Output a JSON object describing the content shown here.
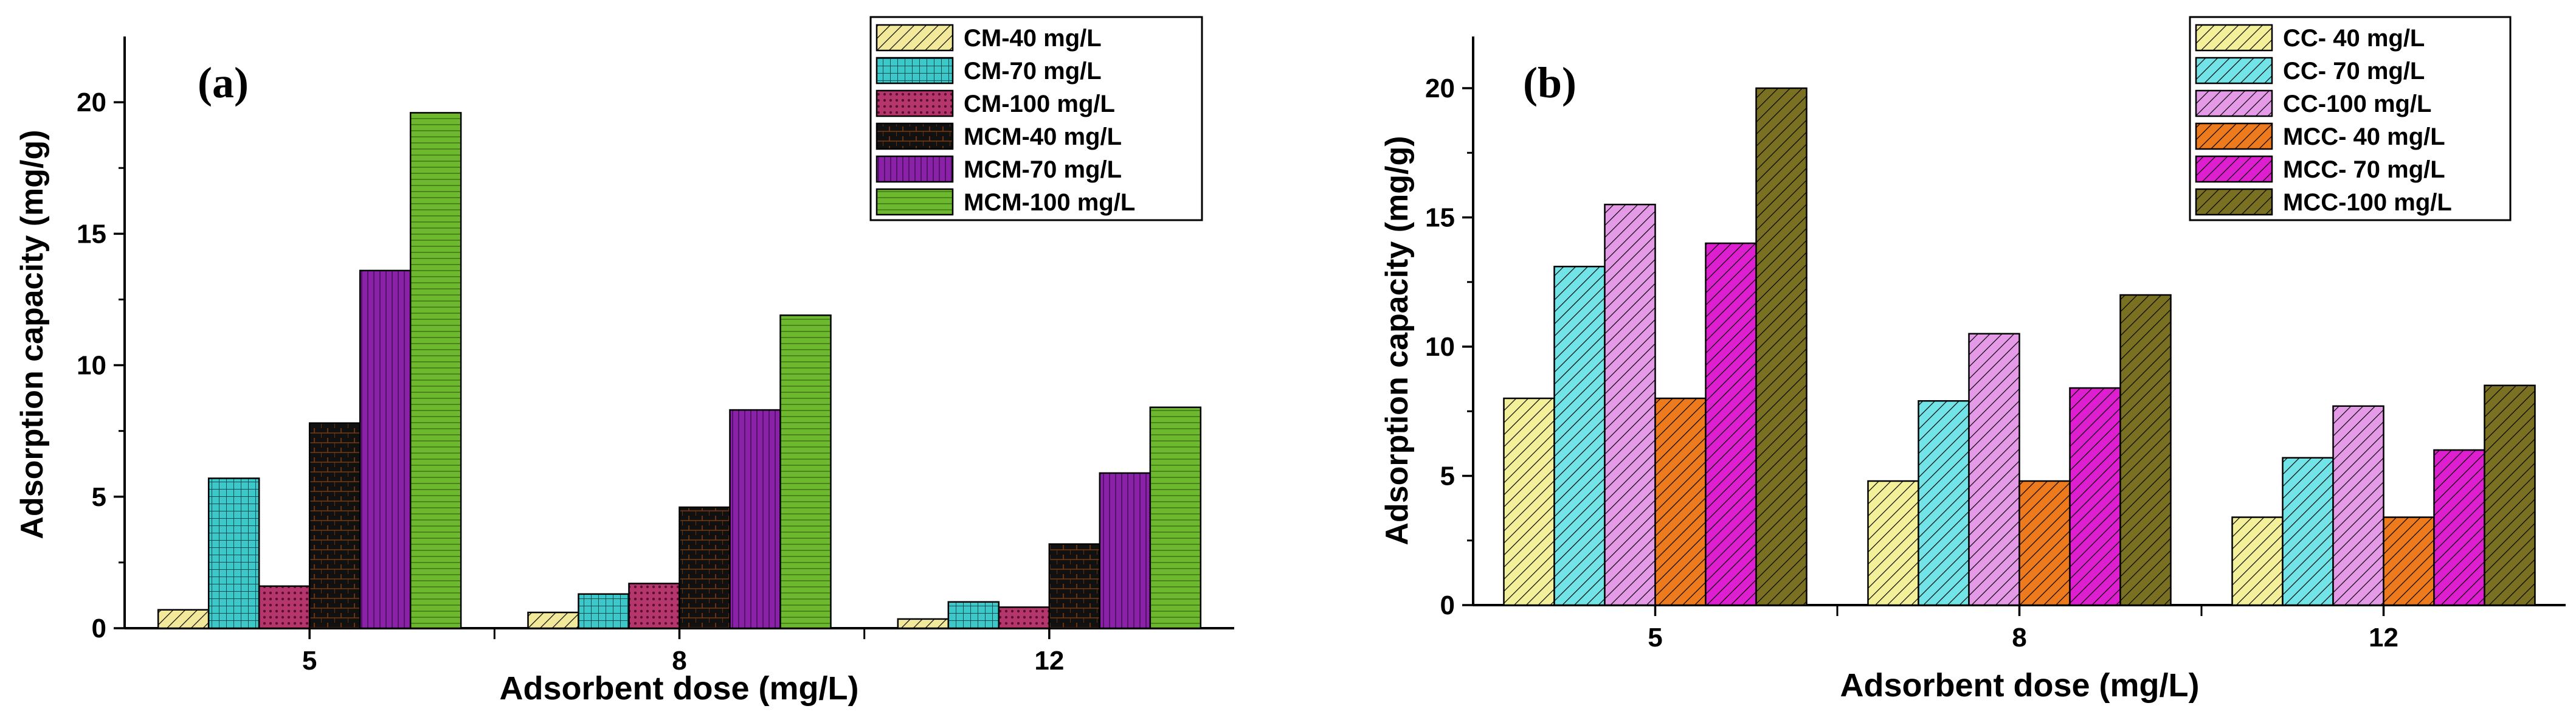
{
  "chart_data": [
    {
      "type": "bar",
      "panel_label": "(a)",
      "title": "",
      "xlabel": "Adsorbent dose (mg/L)",
      "ylabel": "Adsorption capacity (mg/g)",
      "categories": [
        "5",
        "8",
        "12"
      ],
      "ylim": [
        0,
        22.5
      ],
      "yticks": [
        0,
        5,
        10,
        15,
        20
      ],
      "legend_position": "top-right",
      "series": [
        {
          "name": "CM-40 mg/L",
          "values": [
            0.7,
            0.6,
            0.35
          ],
          "color": "#f2e99a",
          "pattern": "diag"
        },
        {
          "name": "CM-70 mg/L",
          "values": [
            5.7,
            1.3,
            1.0
          ],
          "color": "#3cc7c9",
          "pattern": "grid"
        },
        {
          "name": "CM-100 mg/L",
          "values": [
            1.6,
            1.7,
            0.8
          ],
          "color": "#b5366d",
          "pattern": "dots"
        },
        {
          "name": "MCM-40 mg/L",
          "values": [
            7.8,
            4.6,
            3.2
          ],
          "color": "#111111",
          "pattern": "bricks"
        },
        {
          "name": "MCM-70 mg/L",
          "values": [
            13.6,
            8.3,
            5.9
          ],
          "color": "#8a22a8",
          "pattern": "vlines"
        },
        {
          "name": "MCM-100 mg/L",
          "values": [
            19.6,
            11.9,
            8.4
          ],
          "color": "#6db82e",
          "pattern": "hlines"
        }
      ]
    },
    {
      "type": "bar",
      "panel_label": "(b)",
      "title": "",
      "xlabel": "Adsorbent dose (mg/L)",
      "ylabel": "Adsorption capacity (mg/g)",
      "categories": [
        "5",
        "8",
        "12"
      ],
      "ylim": [
        0,
        22
      ],
      "yticks": [
        0,
        5,
        10,
        15,
        20
      ],
      "legend_position": "top-right",
      "series": [
        {
          "name": "CC- 40 mg/L",
          "values": [
            8.0,
            4.8,
            3.4
          ],
          "color": "#f4f09a",
          "pattern": "diag"
        },
        {
          "name": "CC- 70 mg/L",
          "values": [
            13.1,
            7.9,
            5.7
          ],
          "color": "#72e3e6",
          "pattern": "diag"
        },
        {
          "name": "CC-100 mg/L",
          "values": [
            15.5,
            10.5,
            7.7
          ],
          "color": "#e59ae8",
          "pattern": "diag"
        },
        {
          "name": "MCC- 40 mg/L",
          "values": [
            8.0,
            4.8,
            3.4
          ],
          "color": "#ee7a1e",
          "pattern": "diag"
        },
        {
          "name": "MCC- 70 mg/L",
          "values": [
            14.0,
            8.4,
            6.0
          ],
          "color": "#dd1fcf",
          "pattern": "diag"
        },
        {
          "name": "MCC-100 mg/L",
          "values": [
            20.0,
            12.0,
            8.5
          ],
          "color": "#7a7022",
          "pattern": "diag"
        }
      ]
    }
  ]
}
